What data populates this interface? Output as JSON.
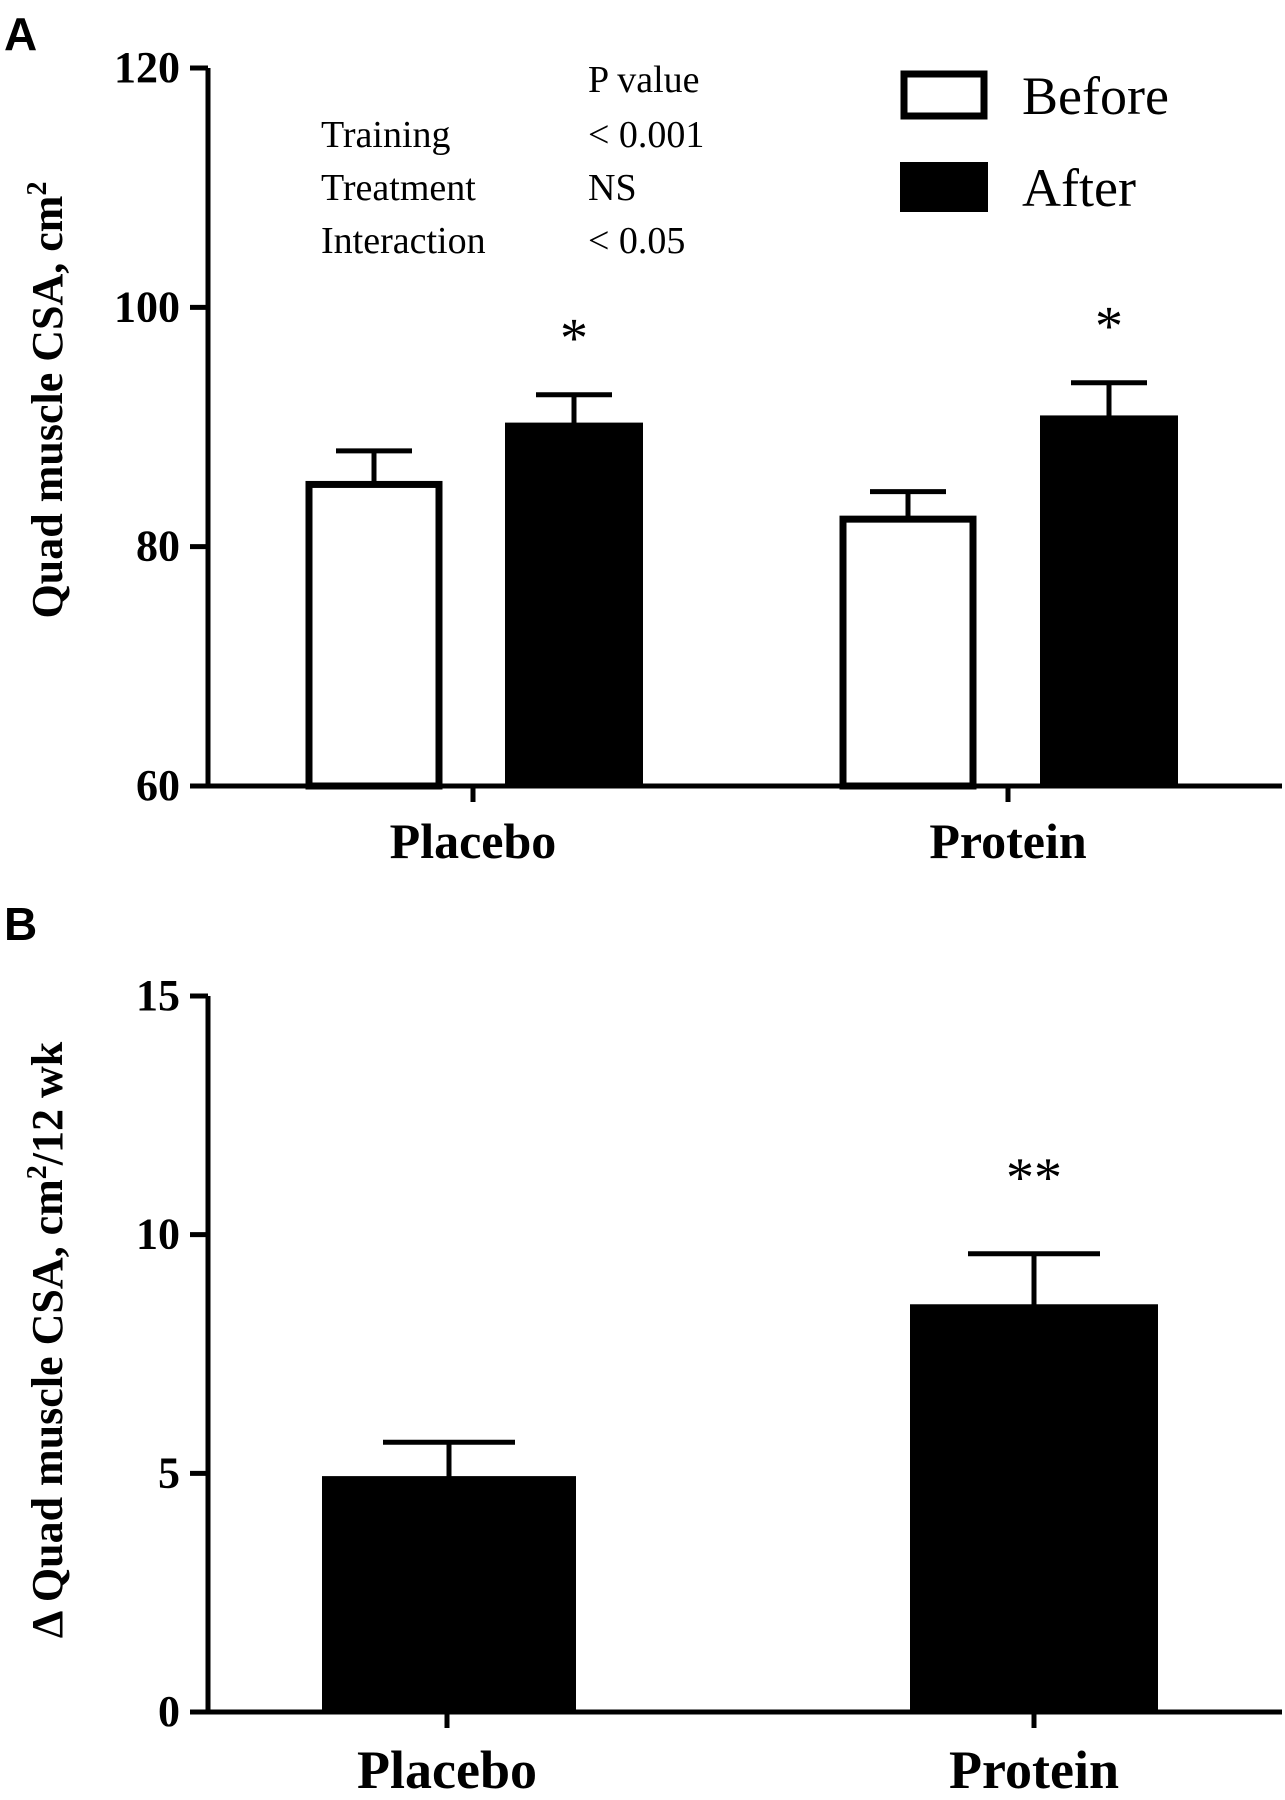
{
  "panel_a": {
    "letter": "A",
    "stats_table": {
      "header": "P value",
      "rows": [
        {
          "label": "Training",
          "value": "< 0.001"
        },
        {
          "label": "Treatment",
          "value": "NS"
        },
        {
          "label": "Interaction",
          "value": "< 0.05"
        }
      ]
    },
    "legend": [
      {
        "label": "Before",
        "fill": "#ffffff"
      },
      {
        "label": "After",
        "fill": "#000000"
      }
    ]
  },
  "panel_b": {
    "letter": "B"
  },
  "chart_data": [
    {
      "type": "bar",
      "ylabel": "Quad muscle CSA, cm",
      "ylabel_sup": "2",
      "ylim": [
        60,
        120
      ],
      "yticks": [
        60,
        80,
        100,
        120
      ],
      "categories": [
        "Placebo",
        "Protein"
      ],
      "series": [
        {
          "name": "Before",
          "fill": "#ffffff",
          "values": [
            85.2,
            82.3
          ],
          "errors": [
            2.8,
            2.3
          ]
        },
        {
          "name": "After",
          "fill": "#000000",
          "values": [
            90.2,
            90.8
          ],
          "errors": [
            2.5,
            2.9
          ]
        }
      ],
      "annotations": [
        {
          "category": "Placebo",
          "series": "After",
          "text": "*"
        },
        {
          "category": "Protein",
          "series": "After",
          "text": "*"
        }
      ],
      "grid": false,
      "legend_position": "top-right"
    },
    {
      "type": "bar",
      "ylabel_prefix": "Δ Quad muscle CSA, cm",
      "ylabel_sup": "2",
      "ylabel_suffix": "/12 wk",
      "ylim": [
        0,
        15
      ],
      "yticks": [
        0,
        5,
        10,
        15
      ],
      "categories": [
        "Placebo",
        "Protein"
      ],
      "series": [
        {
          "fill": "#000000",
          "values": [
            4.9,
            8.5
          ],
          "errors": [
            0.75,
            1.1
          ]
        }
      ],
      "annotations": [
        {
          "category": "Protein",
          "text": "**"
        }
      ],
      "grid": false
    }
  ]
}
